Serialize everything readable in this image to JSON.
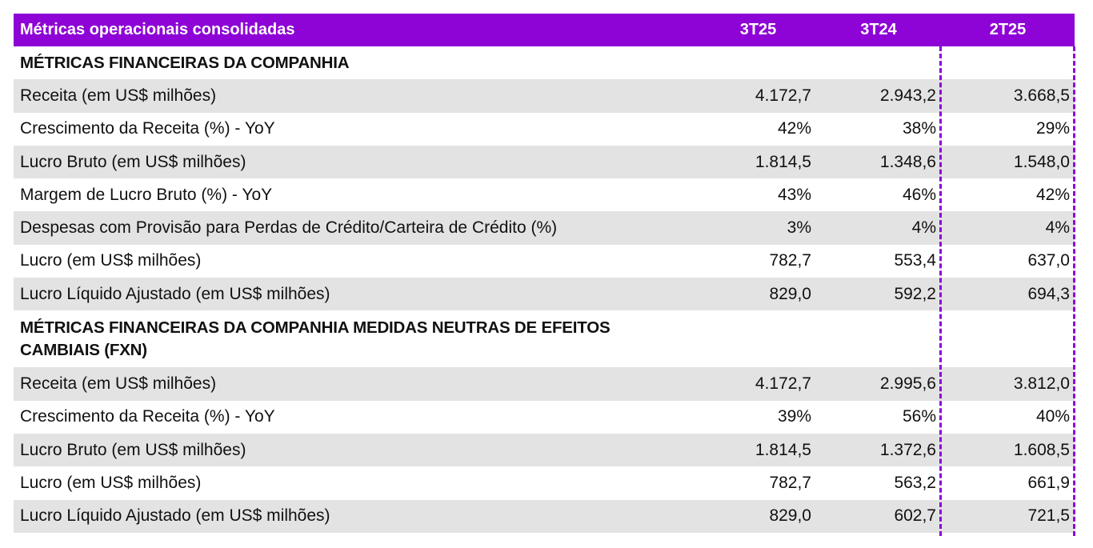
{
  "header": {
    "title": "Métricas operacionais consolidadas",
    "columns": [
      "3T25",
      "3T24",
      "2T25"
    ]
  },
  "sections": [
    {
      "title": "MÉTRICAS FINANCEIRAS DA COMPANHIA",
      "rows": [
        {
          "label": "Receita (em US$ milhões)",
          "values": [
            "4.172,7",
            "2.943,2",
            "3.668,5"
          ]
        },
        {
          "label": "Crescimento da Receita (%) - YoY",
          "values": [
            "42%",
            "38%",
            "29%"
          ]
        },
        {
          "label": "Lucro Bruto (em US$ milhões)",
          "values": [
            "1.814,5",
            "1.348,6",
            "1.548,0"
          ]
        },
        {
          "label": "Margem de Lucro Bruto (%) - YoY",
          "values": [
            "43%",
            "46%",
            "42%"
          ]
        },
        {
          "label": "Despesas com Provisão para Perdas de Crédito/Carteira de Crédito (%)",
          "values": [
            "3%",
            "4%",
            "4%"
          ]
        },
        {
          "label": "Lucro (em US$ milhões)",
          "values": [
            "782,7",
            "553,4",
            "637,0"
          ]
        },
        {
          "label": "Lucro Líquido Ajustado (em US$ milhões)",
          "values": [
            "829,0",
            "592,2",
            "694,3"
          ]
        }
      ]
    },
    {
      "title": "MÉTRICAS FINANCEIRAS DA COMPANHIA MEDIDAS NEUTRAS DE EFEITOS CAMBIAIS (FXN)",
      "rows": [
        {
          "label": "Receita (em US$ milhões)",
          "values": [
            "4.172,7",
            "2.995,6",
            "3.812,0"
          ]
        },
        {
          "label": "Crescimento da Receita (%) - YoY",
          "values": [
            "39%",
            "56%",
            "40%"
          ]
        },
        {
          "label": "Lucro Bruto (em US$ milhões)",
          "values": [
            "1.814,5",
            "1.372,6",
            "1.608,5"
          ]
        },
        {
          "label": "Lucro (em US$ milhões)",
          "values": [
            "782,7",
            "563,2",
            "661,9"
          ]
        },
        {
          "label": "Lucro Líquido Ajustado (em US$ milhões)",
          "values": [
            "829,0",
            "602,7",
            "721,5"
          ]
        }
      ]
    }
  ],
  "colors": {
    "accent": "#8e04d6",
    "row_alt": "#e3e3e3"
  }
}
